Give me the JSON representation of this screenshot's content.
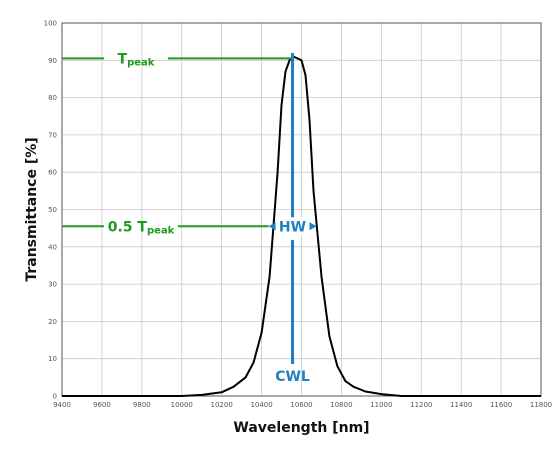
{
  "chart_data": {
    "type": "line",
    "xlabel": "Wavelength [nm]",
    "ylabel": "Transmittance [%]",
    "xlim": [
      9400,
      11800
    ],
    "ylim": [
      0,
      100
    ],
    "x_ticks": [
      9400,
      9600,
      9800,
      10000,
      10200,
      10400,
      10600,
      10800,
      11000,
      11200,
      11400,
      11600,
      11800
    ],
    "y_ticks": [
      0,
      10,
      20,
      30,
      40,
      50,
      60,
      70,
      80,
      90,
      100
    ],
    "grid": true,
    "series": [
      {
        "color": "#000000",
        "x": [
          9400,
          9500,
          9600,
          9800,
          10000,
          10100,
          10200,
          10260,
          10320,
          10360,
          10400,
          10440,
          10480,
          10500,
          10520,
          10540,
          10560,
          10580,
          10600,
          10620,
          10640,
          10660,
          10700,
          10740,
          10780,
          10820,
          10860,
          10920,
          11000,
          11060,
          11100,
          11300,
          11500,
          11800
        ],
        "y": [
          0,
          0,
          0,
          0,
          0,
          0.3,
          1,
          2.5,
          5,
          9,
          17,
          32,
          60,
          78,
          87,
          90,
          91,
          90.5,
          90,
          86,
          74,
          55,
          32,
          16,
          8,
          4,
          2.5,
          1.2,
          0.5,
          0.2,
          0,
          0,
          0,
          0
        ]
      }
    ],
    "annotations": {
      "t_peak": {
        "label": "T",
        "sub": "peak",
        "y": 90.5,
        "color": "#1e9a1e"
      },
      "half_peak": {
        "label": "0.5 T",
        "sub": "peak",
        "y": 45.5,
        "color": "#1e9a1e"
      },
      "hw": {
        "label": "HW",
        "y": 45.5,
        "x_left": 10455,
        "x_right": 10655,
        "color": "#1f7fc4"
      },
      "cwl": {
        "label": "CWL",
        "x": 10555,
        "color": "#1f7fc4"
      }
    }
  }
}
